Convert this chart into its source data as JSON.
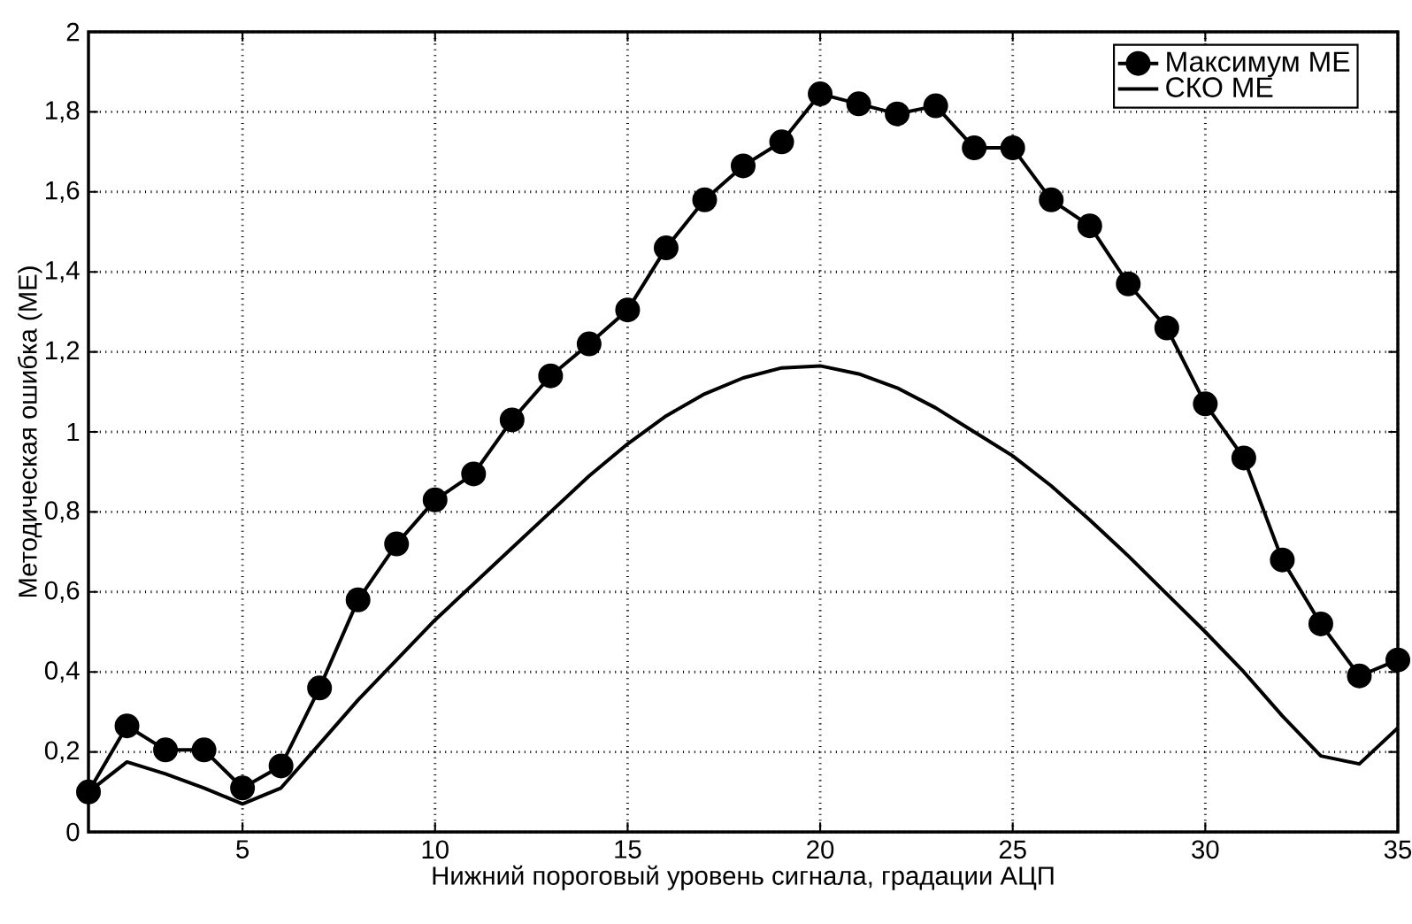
{
  "chart_data": {
    "type": "line",
    "xlabel": "Нижний пороговый уровень сигнала, градации АЦП",
    "ylabel": "Методическая ошибка (МЕ)",
    "x": [
      1,
      2,
      3,
      4,
      5,
      6,
      7,
      8,
      9,
      10,
      11,
      12,
      13,
      14,
      15,
      16,
      17,
      18,
      19,
      20,
      21,
      22,
      23,
      24,
      25,
      26,
      27,
      28,
      29,
      30,
      31,
      32,
      33,
      34,
      35
    ],
    "xlim": [
      1,
      35
    ],
    "xticks": [
      5,
      10,
      15,
      20,
      25,
      30,
      35
    ],
    "ylim": [
      0,
      2
    ],
    "yticks": [
      0,
      {
        "value": 0.2,
        "label": "0,2"
      },
      {
        "value": 0.4,
        "label": "0,4"
      },
      {
        "value": 0.6,
        "label": "0,6"
      },
      {
        "value": 0.8,
        "label": "0,8"
      },
      1,
      {
        "value": 1.2,
        "label": "1,2"
      },
      {
        "value": 1.4,
        "label": "1,4"
      },
      {
        "value": 1.6,
        "label": "1,6"
      },
      {
        "value": 1.8,
        "label": "1,8"
      },
      2
    ],
    "grid": true,
    "legend": "top right",
    "line_style": "solid",
    "series": [
      {
        "name": "Максимум МЕ",
        "color": "#000000",
        "marker": "circle",
        "values": [
          0.1,
          0.265,
          0.205,
          0.205,
          0.11,
          0.165,
          0.36,
          0.58,
          0.72,
          0.83,
          0.895,
          1.03,
          1.14,
          1.22,
          1.305,
          1.46,
          1.58,
          1.665,
          1.725,
          1.845,
          1.82,
          1.795,
          1.815,
          1.71,
          1.71,
          1.58,
          1.515,
          1.37,
          1.26,
          1.07,
          0.935,
          0.68,
          0.52,
          0.39,
          0.43
        ]
      },
      {
        "name": "СКО МЕ",
        "color": "#000000",
        "marker": "none",
        "values": [
          0.1,
          0.175,
          0.145,
          0.11,
          0.07,
          0.11,
          0.22,
          0.33,
          0.43,
          0.53,
          0.62,
          0.71,
          0.8,
          0.89,
          0.97,
          1.04,
          1.095,
          1.135,
          1.16,
          1.165,
          1.145,
          1.11,
          1.06,
          1.0,
          0.94,
          0.865,
          0.78,
          0.69,
          0.595,
          0.5,
          0.4,
          0.29,
          0.19,
          0.17,
          0.26
        ]
      }
    ]
  }
}
